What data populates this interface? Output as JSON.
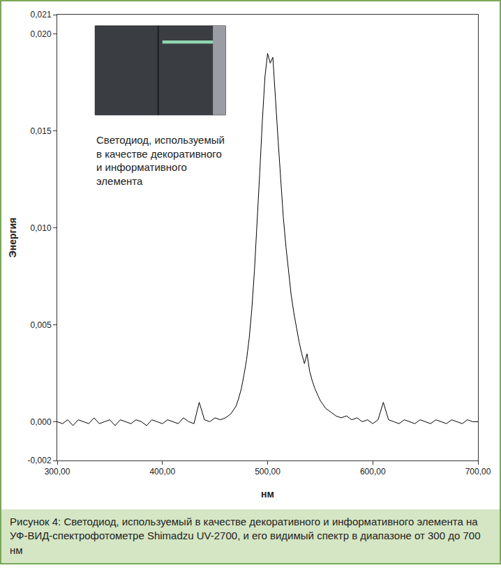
{
  "chart_data": {
    "type": "line",
    "title": "Рисунок 4: Светодиод, используемый в качестве декоративного и информативного элемента на УФ-ВИД-спектрофотометре Shimadzu UV-2700, и его видимый спектр в диапазоне от 300 до 700 нм",
    "annotations": [
      {
        "text": "Светодиод, используемый в качестве декоративного и информативного элемента"
      }
    ],
    "x_label": "нм",
    "y_label": "Энергия",
    "x": [
      300,
      305,
      310,
      315,
      320,
      325,
      330,
      335,
      340,
      345,
      350,
      355,
      360,
      365,
      370,
      375,
      380,
      385,
      390,
      395,
      400,
      405,
      410,
      415,
      420,
      425,
      430,
      435,
      440,
      445,
      450,
      455,
      460,
      462.5,
      465,
      467.5,
      470,
      472.5,
      475,
      477.5,
      480,
      482.5,
      485,
      487.5,
      490,
      492.5,
      495,
      497.5,
      500,
      502.5,
      505,
      507.5,
      510,
      512.5,
      515,
      517.5,
      520,
      522.5,
      525,
      527.5,
      530,
      532.5,
      535,
      537.5,
      540,
      542.5,
      545,
      547.5,
      550,
      552.5,
      555,
      557.5,
      560,
      565,
      570,
      575,
      580,
      585,
      590,
      595,
      600,
      605,
      610,
      615,
      620,
      625,
      630,
      635,
      640,
      645,
      650,
      655,
      660,
      665,
      670,
      675,
      680,
      685,
      690,
      695,
      700
    ],
    "values": [
      0,
      -0.0001,
      0.0001,
      -0.0002,
      0.0001,
      0,
      -0.0001,
      0.0002,
      -0.0001,
      0,
      0.0001,
      -0.0002,
      0.0001,
      0,
      -0.0001,
      0.0001,
      0,
      -0.0002,
      0.0001,
      0,
      -0.0001,
      0.0001,
      0,
      -0.0001,
      0.0002,
      0,
      -0.0001,
      0.001,
      0.0001,
      0,
      0.0002,
      0.0001,
      0.0002,
      0.0003,
      0.0004,
      0.0006,
      0.0008,
      0.0012,
      0.0017,
      0.0024,
      0.0032,
      0.0043,
      0.0058,
      0.0078,
      0.0102,
      0.0128,
      0.0155,
      0.0178,
      0.019,
      0.0185,
      0.0188,
      0.0165,
      0.0145,
      0.0125,
      0.0105,
      0.009,
      0.0077,
      0.0065,
      0.0056,
      0.0048,
      0.0041,
      0.0035,
      0.003,
      0.0035,
      0.0026,
      0.0021,
      0.0017,
      0.0014,
      0.0011,
      0.0009,
      0.0007,
      0.0006,
      0.0005,
      0.0003,
      0.0002,
      0.0003,
      0.0001,
      0.0002,
      0,
      0.0001,
      -0.0001,
      0.0001,
      0.001,
      0.0001,
      0,
      -0.0001,
      0.0001,
      0,
      -0.0001,
      0.0001,
      0,
      -0.0001,
      0.0001,
      0,
      -0.0001,
      0.0001,
      0,
      -0.0001,
      0.0001,
      0,
      0
    ],
    "color": "#000000",
    "xlim": [
      300,
      700
    ],
    "xticks": [
      {
        "value": 300,
        "label": "300,00"
      },
      {
        "value": 400,
        "label": "400,00"
      },
      {
        "value": 500,
        "label": "500,00"
      },
      {
        "value": 600,
        "label": "600,00"
      },
      {
        "value": 700,
        "label": "700,00"
      }
    ],
    "ylim": [
      -0.002,
      0.021
    ],
    "yticks": [
      {
        "value": -0.002,
        "label": "-0,002"
      },
      {
        "value": 0,
        "label": "0,000"
      },
      {
        "value": 0.005,
        "label": "0,005"
      },
      {
        "value": 0.01,
        "label": "0,010"
      },
      {
        "value": 0.015,
        "label": "0,015"
      },
      {
        "value": 0.02,
        "label": "0,020"
      },
      {
        "value": 0.021,
        "label": "0,021"
      }
    ],
    "grid": false
  }
}
